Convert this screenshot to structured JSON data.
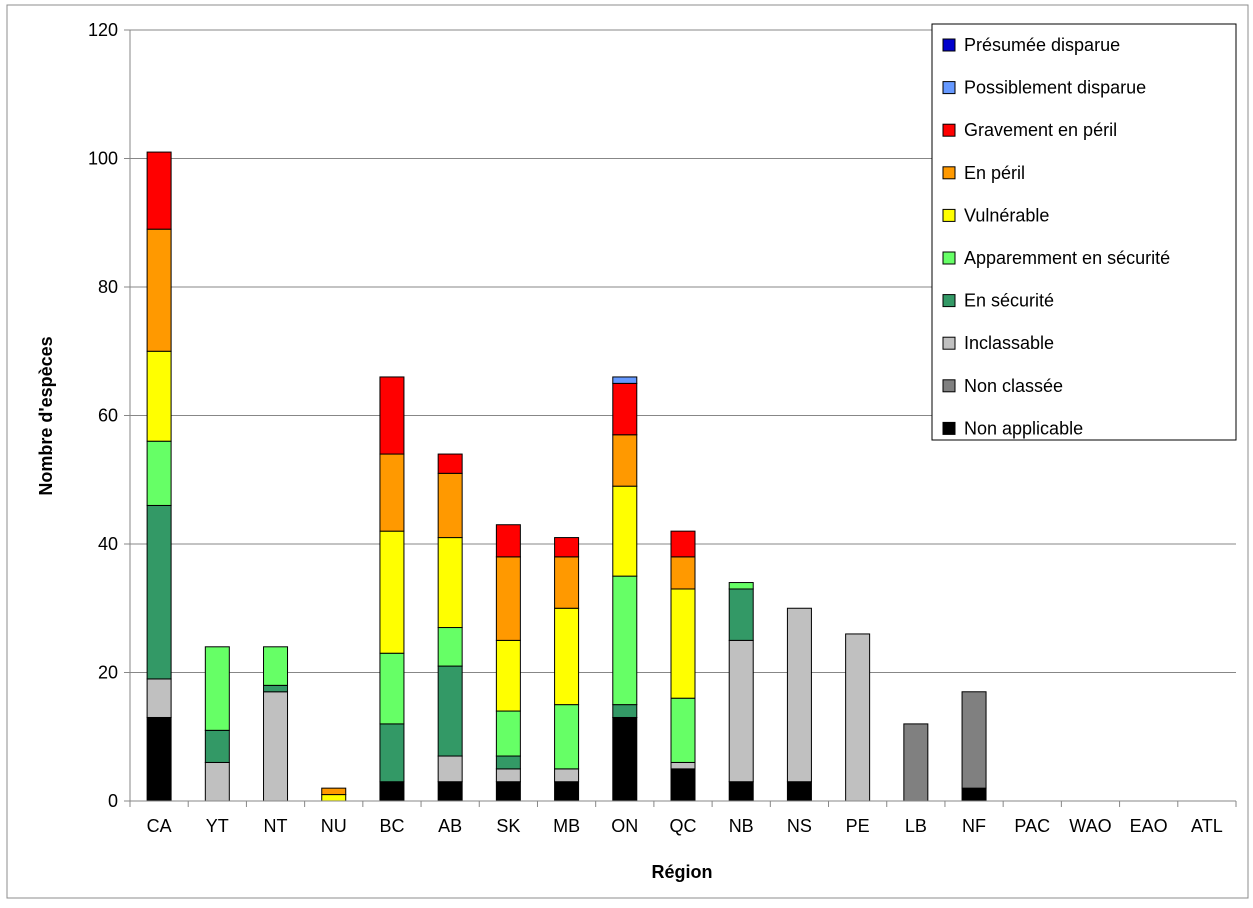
{
  "chart_data": {
    "type": "bar",
    "stacked": true,
    "title": "",
    "xlabel": "Région",
    "ylabel": "Nombre d'espèces",
    "ylim": [
      0,
      120
    ],
    "yticks": [
      0,
      20,
      40,
      60,
      80,
      100,
      120
    ],
    "grid": true,
    "legend_position": "top-right",
    "categories": [
      "CA",
      "YT",
      "NT",
      "NU",
      "BC",
      "AB",
      "SK",
      "MB",
      "ON",
      "QC",
      "NB",
      "NS",
      "PE",
      "LB",
      "NF",
      "PAC",
      "WAO",
      "EAO",
      "ATL"
    ],
    "series": [
      {
        "name": "Non applicable",
        "color": "#000000",
        "values": [
          13,
          0,
          0,
          0,
          3,
          3,
          3,
          3,
          13,
          5,
          3,
          3,
          0,
          0,
          2,
          0,
          0,
          0,
          0
        ]
      },
      {
        "name": "Non classée",
        "color": "#808080",
        "values": [
          0,
          0,
          0,
          0,
          0,
          0,
          0,
          0,
          0,
          0,
          0,
          0,
          0,
          12,
          15,
          0,
          0,
          0,
          0
        ]
      },
      {
        "name": "Inclassable",
        "color": "#c0c0c0",
        "values": [
          6,
          6,
          17,
          0,
          0,
          4,
          2,
          2,
          0,
          1,
          22,
          27,
          26,
          0,
          0,
          0,
          0,
          0,
          0
        ]
      },
      {
        "name": "En sécurité",
        "color": "#339966",
        "values": [
          27,
          5,
          1,
          0,
          9,
          14,
          2,
          0,
          2,
          0,
          8,
          0,
          0,
          0,
          0,
          0,
          0,
          0,
          0
        ]
      },
      {
        "name": "Apparemment en sécurité",
        "color": "#66ff66",
        "values": [
          10,
          13,
          6,
          0,
          11,
          6,
          7,
          10,
          20,
          10,
          1,
          0,
          0,
          0,
          0,
          0,
          0,
          0,
          0
        ]
      },
      {
        "name": "Vulnérable",
        "color": "#ffff00",
        "values": [
          14,
          0,
          0,
          1,
          19,
          14,
          11,
          15,
          14,
          17,
          0,
          0,
          0,
          0,
          0,
          0,
          0,
          0,
          0
        ]
      },
      {
        "name": "En péril",
        "color": "#ff9900",
        "values": [
          19,
          0,
          0,
          1,
          12,
          10,
          13,
          8,
          8,
          5,
          0,
          0,
          0,
          0,
          0,
          0,
          0,
          0,
          0
        ]
      },
      {
        "name": "Gravement en péril",
        "color": "#ff0000",
        "values": [
          12,
          0,
          0,
          0,
          12,
          3,
          5,
          3,
          8,
          4,
          0,
          0,
          0,
          0,
          0,
          0,
          0,
          0,
          0
        ]
      },
      {
        "name": "Possiblement disparue",
        "color": "#6699ff",
        "values": [
          0,
          0,
          0,
          0,
          0,
          0,
          0,
          0,
          1,
          0,
          0,
          0,
          0,
          0,
          0,
          0,
          0,
          0,
          0
        ]
      },
      {
        "name": "Présumée disparue",
        "color": "#0000cc",
        "values": [
          0,
          0,
          0,
          0,
          0,
          0,
          0,
          0,
          0,
          0,
          0,
          0,
          0,
          0,
          0,
          0,
          0,
          0,
          0
        ]
      }
    ],
    "legend_order": [
      "Présumée disparue",
      "Possiblement disparue",
      "Gravement en péril",
      "En péril",
      "Vulnérable",
      "Apparemment en sécurité",
      "En sécurité",
      "Inclassable",
      "Non classée",
      "Non applicable"
    ]
  }
}
